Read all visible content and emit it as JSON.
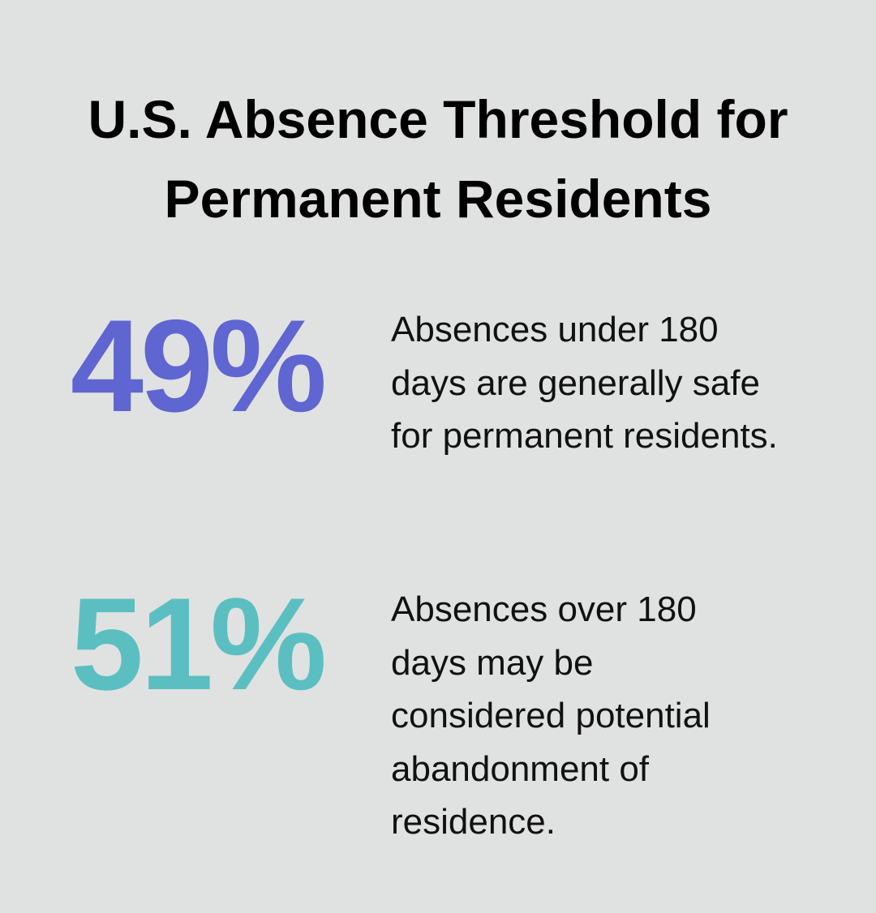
{
  "title": "U.S. Absence Threshold for Permanent Residents",
  "colors": {
    "background": "#e0e2e1",
    "stat1": "#5f65d1",
    "stat2": "#5bbfc2"
  },
  "stats": [
    {
      "value": "49%",
      "description": "Absences under 180 days are generally safe for permanent residents."
    },
    {
      "value": "51%",
      "description": "Absences over 180 days may be considered potential abandonment of residence."
    }
  ]
}
